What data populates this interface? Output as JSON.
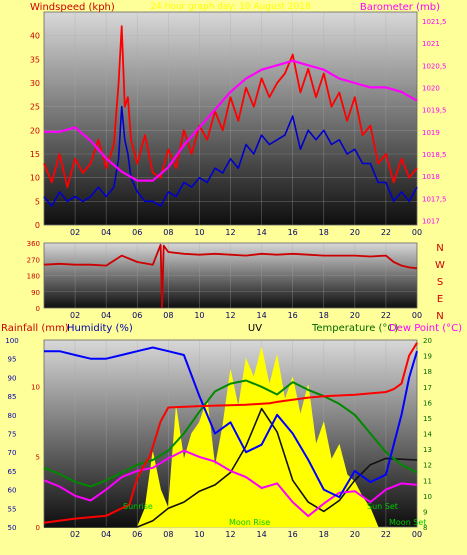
{
  "chart_data": [
    {
      "id": "wind_baro",
      "type": "line",
      "title": "24 hour graph day: 10 August 2018",
      "left_axis": {
        "label": "Windspeed (kph)",
        "range": [
          0,
          45
        ],
        "ticks": [
          "0",
          "5",
          "10",
          "15",
          "20",
          "25",
          "30",
          "35",
          "40"
        ],
        "color": "#cc0000"
      },
      "right_axis": {
        "label": "Barometer (mb)",
        "range": [
          1016.9,
          1021.7
        ],
        "ticks": [
          "1017",
          "1017,5",
          "1018",
          "1018,5",
          "1019",
          "1019,5",
          "1020",
          "1020,5",
          "1021",
          "1021,5"
        ],
        "color": "#ff00ff"
      },
      "x_ticks": [
        "02",
        "04",
        "06",
        "08",
        "10",
        "12",
        "14",
        "16",
        "18",
        "20",
        "22",
        "00"
      ],
      "series": [
        {
          "role": "gust",
          "color": "#ff0000",
          "axis": "left",
          "x": [
            0,
            0.5,
            1,
            1.5,
            2,
            2.5,
            3,
            3.5,
            4,
            4.5,
            4.8,
            5,
            5.2,
            5.4,
            5.6,
            6,
            6.5,
            7,
            7.5,
            8,
            8.5,
            9,
            9.5,
            10,
            10.5,
            11,
            11.5,
            12,
            12.5,
            13,
            13.5,
            14,
            14.5,
            15,
            15.5,
            16,
            16.5,
            17,
            17.5,
            18,
            18.5,
            19,
            19.5,
            20,
            20.5,
            21,
            21.5,
            22,
            22.5,
            23,
            23.5,
            24
          ],
          "y": [
            13,
            9,
            15,
            8,
            14,
            11,
            13,
            18,
            12,
            17,
            30,
            42,
            25,
            27,
            18,
            13,
            19,
            11,
            10,
            16,
            12,
            20,
            15,
            21,
            18,
            24,
            20,
            27,
            22,
            29,
            25,
            31,
            27,
            30,
            32,
            36,
            28,
            33,
            27,
            32,
            25,
            28,
            22,
            27,
            19,
            21,
            13,
            15,
            9,
            14,
            10,
            12
          ]
        },
        {
          "role": "average",
          "color": "#0000cc",
          "axis": "left",
          "x": [
            0,
            0.5,
            1,
            1.5,
            2,
            2.5,
            3,
            3.5,
            4,
            4.5,
            4.8,
            5,
            5.2,
            5.4,
            5.6,
            6,
            6.5,
            7,
            7.5,
            8,
            8.5,
            9,
            9.5,
            10,
            10.5,
            11,
            11.5,
            12,
            12.5,
            13,
            13.5,
            14,
            14.5,
            15,
            15.5,
            16,
            16.5,
            17,
            17.5,
            18,
            18.5,
            19,
            19.5,
            20,
            20.5,
            21,
            21.5,
            22,
            22.5,
            23,
            23.5,
            24
          ],
          "y": [
            6,
            4,
            7,
            5,
            6,
            5,
            6,
            8,
            6,
            8,
            14,
            25,
            18,
            15,
            10,
            7,
            5,
            5,
            4,
            7,
            6,
            9,
            8,
            10,
            9,
            12,
            11,
            14,
            12,
            17,
            15,
            19,
            17,
            18,
            19,
            23,
            16,
            20,
            18,
            20,
            17,
            18,
            15,
            16,
            13,
            13,
            9,
            9,
            5,
            7,
            5,
            8
          ]
        },
        {
          "role": "barometer",
          "color": "#ff00ff",
          "axis": "right",
          "x": [
            0,
            1,
            2,
            3,
            4,
            5,
            6,
            7,
            8,
            9,
            10,
            11,
            12,
            13,
            14,
            15,
            16,
            17,
            18,
            19,
            20,
            21,
            22,
            23,
            24
          ],
          "y": [
            1019,
            1019,
            1019.1,
            1018.8,
            1018.4,
            1018.1,
            1017.9,
            1017.9,
            1018.2,
            1018.7,
            1019.1,
            1019.5,
            1019.9,
            1020.2,
            1020.4,
            1020.5,
            1020.6,
            1020.5,
            1020.4,
            1020.2,
            1020.1,
            1020,
            1020,
            1019.9,
            1019.7
          ]
        }
      ]
    },
    {
      "id": "wind_dir",
      "type": "line",
      "left_ticks": [
        "0",
        "90",
        "180",
        "270",
        "360"
      ],
      "range": [
        0,
        360
      ],
      "right_labels": [
        "N",
        "W",
        "S",
        "E",
        "N"
      ],
      "x_ticks": [
        "02",
        "04",
        "06",
        "08",
        "10",
        "12",
        "14",
        "16",
        "18",
        "20",
        "22",
        "00"
      ],
      "series": [
        {
          "role": "direction",
          "color": "#cc0000",
          "x": [
            0,
            1,
            2,
            3,
            4,
            5,
            6,
            7,
            7.5,
            7.6,
            7.7,
            8,
            9,
            10,
            11,
            12,
            13,
            14,
            15,
            16,
            17,
            18,
            19,
            20,
            21,
            22,
            22.5,
            23,
            23.5,
            24
          ],
          "y": [
            240,
            245,
            240,
            240,
            235,
            290,
            255,
            240,
            350,
            5,
            345,
            310,
            300,
            295,
            300,
            295,
            290,
            300,
            295,
            300,
            295,
            290,
            290,
            290,
            285,
            290,
            255,
            235,
            225,
            220
          ]
        }
      ]
    },
    {
      "id": "temp_combo",
      "type": "line",
      "labels": {
        "rainfall": "Rainfall (mm)",
        "humidity": "Humidity (%)",
        "uv": "UV",
        "temperature": "Temperature (°C)",
        "dewpoint": "Dew Point (°C)"
      },
      "humidity_axis": {
        "range": [
          50,
          100
        ],
        "ticks": [
          "50",
          "55",
          "60",
          "65",
          "70",
          "75",
          "80",
          "85",
          "90",
          "95",
          "100"
        ]
      },
      "rain_axis": {
        "range": [
          0,
          13.3
        ],
        "ticks": [
          "0",
          "5",
          "10"
        ]
      },
      "temp_axis": {
        "range": [
          8,
          20
        ],
        "ticks": [
          "8",
          "9",
          "10",
          "11",
          "12",
          "13",
          "14",
          "15",
          "16",
          "17",
          "18",
          "19",
          "20"
        ]
      },
      "x_ticks": [
        "02",
        "04",
        "06",
        "08",
        "10",
        "12",
        "14",
        "16",
        "18",
        "20",
        "22",
        "00"
      ],
      "annotations": [
        "Sunrise",
        "Moon Rise",
        "Sun Set",
        "Moon Set"
      ],
      "series": [
        {
          "role": "humidity",
          "color": "#0000ff",
          "axis": "humidity",
          "x": [
            0,
            1,
            2,
            3,
            4,
            5,
            6,
            7,
            8,
            9,
            10,
            11,
            12,
            13,
            14,
            15,
            16,
            17,
            18,
            19,
            20,
            21,
            22,
            23,
            23.5,
            24
          ],
          "y": [
            97,
            97,
            96,
            95,
            95,
            96,
            97,
            98,
            97,
            96,
            85,
            75,
            78,
            70,
            72,
            80,
            75,
            68,
            60,
            58,
            65,
            62,
            64,
            80,
            90,
            97
          ]
        },
        {
          "role": "uv",
          "color": "#ffff00",
          "axis": "humidity",
          "x": [
            6,
            6.5,
            7,
            7.5,
            8,
            8.5,
            9,
            9.5,
            10,
            10.5,
            11,
            11.5,
            12,
            12.5,
            13,
            13.5,
            14,
            14.5,
            15,
            15.5,
            16,
            16.5,
            17,
            17.5,
            18,
            18.5,
            19,
            19.5,
            20,
            20.5,
            21,
            21.5
          ],
          "y": [
            50,
            55,
            70,
            60,
            55,
            82,
            68,
            75,
            78,
            84,
            66,
            77,
            92,
            82,
            95,
            90,
            98,
            88,
            96,
            84,
            90,
            80,
            88,
            72,
            78,
            68,
            72,
            64,
            62,
            58,
            55,
            50
          ]
        },
        {
          "role": "rainfall",
          "color": "#ff0000",
          "axis": "rain",
          "x": [
            0,
            2,
            4,
            5.5,
            6,
            6.5,
            6.8,
            7.5,
            8,
            10,
            13,
            14.5,
            15,
            17,
            18,
            20,
            21,
            22,
            22.5,
            23,
            23.5,
            24
          ],
          "y": [
            0.3,
            0.6,
            0.8,
            1.6,
            3.5,
            4.5,
            5,
            7.5,
            8.5,
            8.6,
            8.7,
            8.8,
            8.9,
            9.2,
            9.3,
            9.4,
            9.5,
            9.6,
            9.8,
            10.2,
            12.2,
            13.1
          ]
        },
        {
          "role": "temperature",
          "color": "#008800",
          "axis": "temp",
          "x": [
            0,
            1,
            2,
            3,
            4,
            5,
            6,
            7,
            8,
            9,
            10,
            11,
            12,
            13,
            14,
            15,
            16,
            17,
            18,
            19,
            20,
            21,
            22,
            23,
            24
          ],
          "y": [
            11.8,
            11.4,
            10.9,
            10.6,
            11,
            11.5,
            12,
            12.3,
            12.9,
            14,
            15.4,
            16.7,
            17.2,
            17.4,
            17,
            16.5,
            17.3,
            16.8,
            16.4,
            15.9,
            15.2,
            14,
            12.8,
            12,
            11.5
          ]
        },
        {
          "role": "dewpoint",
          "color": "#ff00ff",
          "axis": "temp",
          "x": [
            0,
            1,
            2,
            3,
            4,
            5,
            6,
            7,
            8,
            9,
            10,
            11,
            12,
            13,
            14,
            15,
            16,
            17,
            18,
            19,
            20,
            21,
            22,
            23,
            24
          ],
          "y": [
            11,
            10.6,
            10,
            9.7,
            10.4,
            11.2,
            11.6,
            11.8,
            12.4,
            12.9,
            12.5,
            12.2,
            11.6,
            11.2,
            10.5,
            10.8,
            9.6,
            8.7,
            9.5,
            10.2,
            10.3,
            9.6,
            10.4,
            10.8,
            10.7
          ]
        },
        {
          "role": "black",
          "color": "#111111",
          "axis": "temp",
          "x": [
            0,
            6,
            7,
            8,
            9,
            10,
            11,
            12,
            13,
            14,
            15,
            16,
            17,
            18,
            19,
            20,
            21,
            22,
            24
          ],
          "y": [
            8,
            8,
            8.4,
            9.2,
            9.6,
            10.3,
            10.7,
            11.5,
            13.2,
            15.6,
            14.1,
            11,
            9.6,
            9,
            9.7,
            11,
            12,
            12.4,
            12.3
          ]
        }
      ]
    }
  ]
}
